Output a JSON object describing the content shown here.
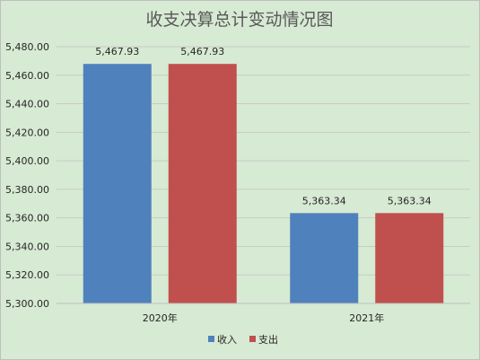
{
  "chart_data": {
    "type": "bar",
    "title": "收支决算总计变动情况图",
    "categories": [
      "2020年",
      "2021年"
    ],
    "series": [
      {
        "name": "收入",
        "values": [
          5467.93,
          5363.34
        ],
        "color": "#4f81bd"
      },
      {
        "name": "支出",
        "values": [
          5467.93,
          5363.34
        ],
        "color": "#c0504d"
      }
    ],
    "data_labels": [
      [
        "5,467.93",
        "5,363.34"
      ],
      [
        "5,467.93",
        "5,363.34"
      ]
    ],
    "ylim": [
      5300,
      5480
    ],
    "y_ticks": [
      5300,
      5320,
      5340,
      5360,
      5380,
      5400,
      5420,
      5440,
      5460,
      5480
    ],
    "y_tick_labels": [
      "5,300.00",
      "5,320.00",
      "5,340.00",
      "5,360.00",
      "5,380.00",
      "5,400.00",
      "5,420.00",
      "5,440.00",
      "5,460.00",
      "5,480.00"
    ],
    "grid": true,
    "legend_position": "bottom",
    "background_color": "#d7ead3"
  }
}
